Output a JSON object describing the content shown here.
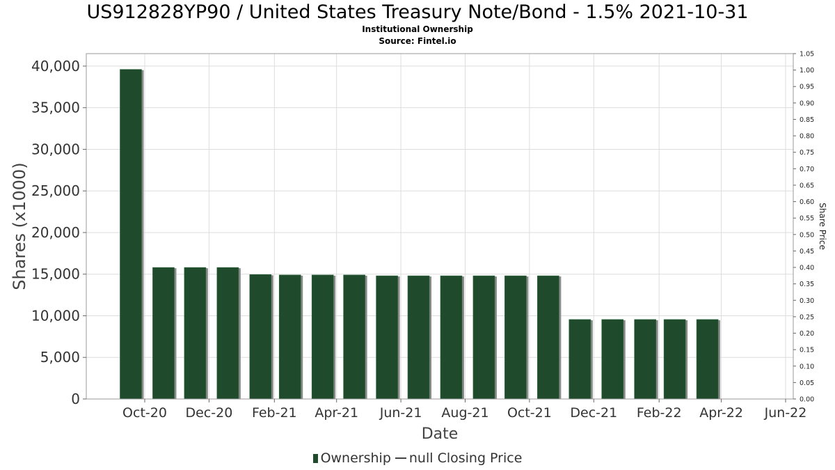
{
  "title": "US912828YP90 / United States Treasury Note/Bond - 1.5% 2021-10-31",
  "subtitle1": "Institutional Ownership",
  "subtitle2": "Source: Fintel.io",
  "legend": {
    "ownership": "Ownership",
    "price": "null Closing Price"
  },
  "colors": {
    "bar": "#1f4a2c",
    "bar_shadow": "#8a8a8a",
    "grid": "#dddddd"
  },
  "chart_data": {
    "type": "bar",
    "title": "US912828YP90 / United States Treasury Note/Bond - 1.5% 2021-10-31",
    "xlabel": "Date",
    "ylabel": "Shares (x1000)",
    "y2label": "Share Price",
    "ylim": [
      0,
      41500
    ],
    "y2lim": [
      0,
      1.05
    ],
    "grid": true,
    "legend_position": "bottom",
    "x_ticks": [
      "Oct-20",
      "Dec-20",
      "Feb-21",
      "Apr-21",
      "Jun-21",
      "Aug-21",
      "Oct-21",
      "Dec-21",
      "Feb-22",
      "Apr-22",
      "Jun-22"
    ],
    "y_ticks": [
      "0",
      "5,000",
      "10,000",
      "15,000",
      "20,000",
      "25,000",
      "30,000",
      "35,000",
      "40,000"
    ],
    "y2_ticks": [
      "0.00",
      "0.05",
      "0.10",
      "0.15",
      "0.20",
      "0.25",
      "0.30",
      "0.35",
      "0.40",
      "0.45",
      "0.50",
      "0.55",
      "0.60",
      "0.65",
      "0.70",
      "0.75",
      "0.80",
      "0.85",
      "0.90",
      "0.95",
      "1.00",
      "1.05"
    ],
    "series": [
      {
        "name": "Ownership",
        "x": [
          "2020-10-01",
          "2020-11-01",
          "2020-12-01",
          "2021-01-01",
          "2021-02-01",
          "2021-03-01",
          "2021-04-01",
          "2021-05-01",
          "2021-06-01",
          "2021-07-01",
          "2021-08-01",
          "2021-09-01",
          "2021-10-01",
          "2021-11-01",
          "2021-12-01",
          "2022-01-01",
          "2022-02-01",
          "2022-03-01",
          "2022-04-01"
        ],
        "values": [
          39600,
          15800,
          15800,
          15800,
          14950,
          14900,
          14900,
          14900,
          14800,
          14800,
          14800,
          14800,
          14800,
          14800,
          9550,
          9550,
          9550,
          9550,
          9550
        ]
      },
      {
        "name": "null Closing Price",
        "values": []
      }
    ]
  }
}
